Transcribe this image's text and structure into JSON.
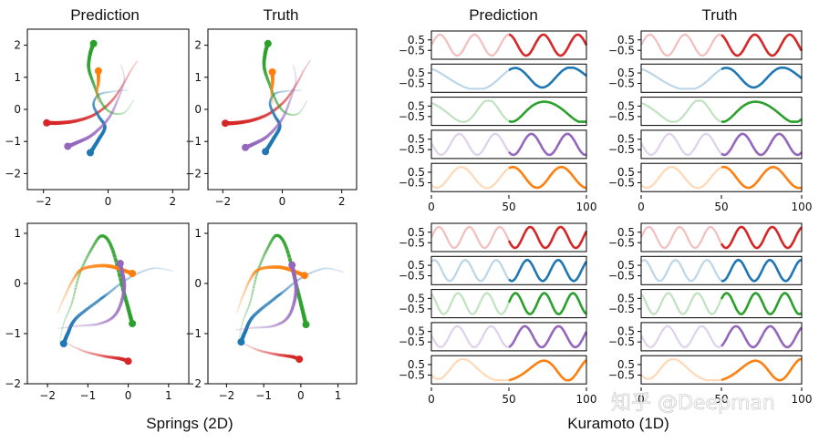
{
  "watermark": "知乎 @Deepman",
  "chart_data": [
    {
      "type": "scatter",
      "group": "Springs (2D)",
      "rows": [
        {
          "xlim": [
            -2.5,
            2.5
          ],
          "ylim": [
            -2.5,
            2.5
          ],
          "xticks": [
            -2,
            0,
            2
          ],
          "yticks": [
            -2,
            -1,
            0,
            1,
            2
          ],
          "panels": [
            "Prediction",
            "Truth"
          ],
          "trajectories": [
            {
              "color": "#d62728",
              "points": [
                [
                  0.9,
                  1.5
                ],
                [
                  0.7,
                  1.2
                ],
                [
                  0.45,
                  0.75
                ],
                [
                  0.1,
                  0.25
                ],
                [
                  -0.4,
                  -0.15
                ],
                [
                  -0.95,
                  -0.35
                ],
                [
                  -1.5,
                  -0.42
                ],
                [
                  -1.9,
                  -0.42
                ]
              ]
            },
            {
              "color": "#1f77b4",
              "points": [
                [
                  0.6,
                  0.6
                ],
                [
                  0.1,
                  0.55
                ],
                [
                  -0.3,
                  0.45
                ],
                [
                  -0.45,
                  0.15
                ],
                [
                  -0.3,
                  -0.2
                ],
                [
                  -0.1,
                  -0.55
                ],
                [
                  -0.3,
                  -0.95
                ],
                [
                  -0.55,
                  -1.35
                ]
              ]
            },
            {
              "color": "#2ca02c",
              "points": [
                [
                  0.8,
                  0.3
                ],
                [
                  0.5,
                  -0.1
                ],
                [
                  0.1,
                  -0.1
                ],
                [
                  -0.2,
                  0.2
                ],
                [
                  -0.45,
                  0.8
                ],
                [
                  -0.6,
                  1.3
                ],
                [
                  -0.55,
                  1.75
                ],
                [
                  -0.45,
                  2.05
                ]
              ]
            },
            {
              "color": "#ff7f0e",
              "points": [
                [
                  -0.3,
                  0.2
                ],
                [
                  -0.35,
                  0.5
                ],
                [
                  -0.3,
                  0.85
                ],
                [
                  -0.3,
                  1.2
                ]
              ]
            },
            {
              "color": "#9467bd",
              "points": [
                [
                  0.4,
                  1.4
                ],
                [
                  0.5,
                  0.9
                ],
                [
                  0.3,
                  0.3
                ],
                [
                  0.0,
                  -0.3
                ],
                [
                  -0.5,
                  -0.8
                ],
                [
                  -1.0,
                  -1.05
                ],
                [
                  -1.25,
                  -1.15
                ]
              ]
            }
          ]
        },
        {
          "xlim": [
            -2.5,
            1.5
          ],
          "ylim": [
            -2.0,
            1.2
          ],
          "xticks": [
            -2,
            -1,
            0,
            1
          ],
          "yticks": [
            -2,
            -1,
            0,
            1
          ],
          "panels": [
            "Prediction",
            "Truth"
          ],
          "trajectories": [
            {
              "color": "#d62728",
              "points": [
                [
                  -1.5,
                  -1.2
                ],
                [
                  -1.1,
                  -1.35
                ],
                [
                  -0.6,
                  -1.45
                ],
                [
                  -0.2,
                  -1.5
                ],
                [
                  0.0,
                  -1.55
                ]
              ]
            },
            {
              "color": "#1f77b4",
              "points": [
                [
                  1.1,
                  0.25
                ],
                [
                  0.6,
                  0.3
                ],
                [
                  0.0,
                  0.1
                ],
                [
                  -0.5,
                  -0.2
                ],
                [
                  -0.75,
                  -0.35
                ],
                [
                  -1.3,
                  -0.7
                ],
                [
                  -1.5,
                  -1.0
                ],
                [
                  -1.6,
                  -1.2
                ]
              ]
            },
            {
              "color": "#2ca02c",
              "points": [
                [
                  -1.7,
                  -1.2
                ],
                [
                  -1.6,
                  -0.8
                ],
                [
                  -1.4,
                  -0.4
                ],
                [
                  -1.2,
                  0.2
                ],
                [
                  -0.9,
                  0.7
                ],
                [
                  -0.65,
                  0.95
                ],
                [
                  -0.4,
                  0.7
                ],
                [
                  -0.1,
                  -0.2
                ],
                [
                  0.1,
                  -0.8
                ]
              ]
            },
            {
              "color": "#ff7f0e",
              "points": [
                [
                  -1.75,
                  -0.6
                ],
                [
                  -1.6,
                  -0.3
                ],
                [
                  -1.35,
                  0.1
                ],
                [
                  -1.1,
                  0.3
                ],
                [
                  -0.5,
                  0.35
                ],
                [
                  0.1,
                  0.2
                ]
              ]
            },
            {
              "color": "#9467bd",
              "points": [
                [
                  -1.75,
                  -0.9
                ],
                [
                  -1.3,
                  -0.85
                ],
                [
                  -0.7,
                  -0.8
                ],
                [
                  -0.3,
                  -0.6
                ],
                [
                  -0.1,
                  -0.1
                ],
                [
                  -0.2,
                  0.4
                ]
              ]
            }
          ]
        }
      ]
    },
    {
      "type": "line",
      "group": "Kuramoto (1D)",
      "xlim": [
        0,
        100
      ],
      "xticks": [
        0,
        50,
        100
      ],
      "yticks": [
        -0.5,
        0.5
      ],
      "split_x": 50,
      "panels": [
        "Prediction",
        "Truth"
      ],
      "rows": [
        {
          "series": [
            {
              "color": "#d62728",
              "freq": 4.5,
              "mod": 0.0
            },
            {
              "color": "#1f77b4",
              "freq": 2.2,
              "mod": 0.8
            },
            {
              "color": "#2ca02c",
              "freq": 2.6,
              "mod": 0.6
            },
            {
              "color": "#9467bd",
              "freq": 4.3,
              "mod": 0.0
            },
            {
              "color": "#ff7f0e",
              "freq": 3.1,
              "mod": 0.1
            }
          ]
        },
        {
          "series": [
            {
              "color": "#d62728",
              "freq": 5.1,
              "mod": 0.0
            },
            {
              "color": "#1f77b4",
              "freq": 5.0,
              "mod": 0.0
            },
            {
              "color": "#2ca02c",
              "freq": 5.4,
              "mod": 0.0
            },
            {
              "color": "#9467bd",
              "freq": 4.6,
              "mod": 0.0
            },
            {
              "color": "#ff7f0e",
              "freq": 2.4,
              "mod": 0.9
            }
          ]
        }
      ]
    }
  ]
}
